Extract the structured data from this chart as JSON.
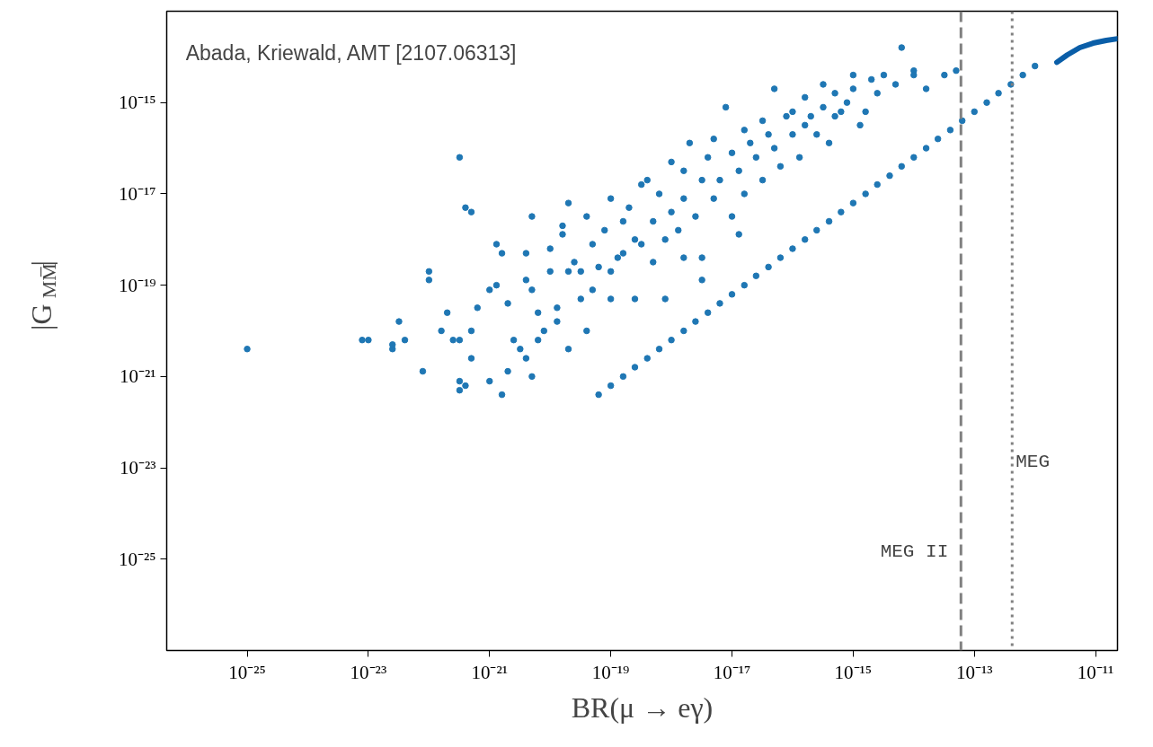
{
  "chart_data": {
    "type": "scatter",
    "xlabel": "BR(μ → eγ)",
    "ylabel": "|G$_{MM̅}$|",
    "log": "xy",
    "grid": false,
    "marker": "circle",
    "xlim": [
      4.7e-27,
      2.3e-11
    ],
    "ylim": [
      1e-27,
      1e-13
    ],
    "xticks": [
      {
        "value": 1e-25,
        "label": "10⁻²⁵"
      },
      {
        "value": 1e-23,
        "label": "10⁻²³"
      },
      {
        "value": 1e-21,
        "label": "10⁻²¹"
      },
      {
        "value": 1e-19,
        "label": "10⁻¹⁹"
      },
      {
        "value": 1e-17,
        "label": "10⁻¹⁷"
      },
      {
        "value": 1e-15,
        "label": "10⁻¹⁵"
      },
      {
        "value": 1e-13,
        "label": "10⁻¹³"
      },
      {
        "value": 1e-11,
        "label": "10⁻¹¹"
      }
    ],
    "yticks": [
      {
        "value": 1e-25,
        "label": "10⁻²⁵"
      },
      {
        "value": 1e-23,
        "label": "10⁻²³"
      },
      {
        "value": 1e-21,
        "label": "10⁻²¹"
      },
      {
        "value": 1e-19,
        "label": "10⁻¹⁹"
      },
      {
        "value": 1e-17,
        "label": "10⁻¹⁷"
      },
      {
        "value": 1e-15,
        "label": "10⁻¹⁵"
      }
    ],
    "annotations": [
      "Abada, Kriewald, AMT [2107.06313]"
    ],
    "ref_lines": [
      {
        "axis": "x",
        "value": 6e-14,
        "label": "MEG II",
        "color": "#808080",
        "line_style": "dashed"
      },
      {
        "axis": "x",
        "value": 4.2e-13,
        "label": "MEG",
        "color": "#808080",
        "line_style": "dotted"
      }
    ],
    "series": [
      {
        "color": "#1f77b4",
        "x": [
          1e-25,
          7.9e-24,
          1e-23,
          2.5e-23,
          2.5e-23,
          3.2e-23,
          4e-23,
          7.9e-23,
          1e-22,
          1e-22,
          1.6e-22,
          2e-22,
          2.5e-22,
          3.2e-22,
          3.2e-22,
          3.2e-22,
          4e-22,
          3.2e-22,
          5e-22,
          5e-22,
          6.3e-22,
          1e-21,
          1e-21,
          1.3e-21,
          1.3e-21,
          1.6e-21,
          1.6e-21,
          2e-21,
          2e-21,
          2.5e-21,
          3.2e-21,
          4e-21,
          4e-21,
          5e-21,
          5e-21,
          6.3e-21,
          6.3e-21,
          7.9e-21,
          1e-20,
          1e-20,
          1.3e-20,
          1.3e-20,
          1.6e-20,
          1.6e-20,
          2e-20,
          2e-20,
          2.5e-20,
          3.2e-20,
          3.2e-20,
          4e-20,
          5e-20,
          5e-20,
          6.3e-20,
          7.9e-20,
          1e-19,
          1e-19,
          1.3e-19,
          1.6e-19,
          1.6e-19,
          2e-19,
          2.5e-19,
          3.2e-19,
          3.2e-19,
          4e-19,
          5e-19,
          5e-19,
          6.3e-19,
          7.9e-19,
          1e-18,
          1e-18,
          1.3e-18,
          1.6e-18,
          1.6e-18,
          2e-18,
          2.5e-18,
          3.2e-18,
          3.2e-18,
          4e-18,
          5e-18,
          5e-18,
          6.3e-18,
          7.9e-18,
          1e-17,
          1e-17,
          1.3e-17,
          1.6e-17,
          1.6e-17,
          2e-17,
          2.5e-17,
          3.2e-17,
          3.2e-17,
          4e-17,
          5e-17,
          5e-17,
          6.3e-17,
          7.9e-17,
          1e-16,
          1e-16,
          1.3e-16,
          1.6e-16,
          1.6e-16,
          2e-16,
          2.5e-16,
          3.2e-16,
          3.2e-16,
          4e-16,
          5e-16,
          5e-16,
          6.3e-16,
          7.9e-16,
          1e-15,
          1e-15,
          1.3e-15,
          1.6e-15,
          2e-15,
          2.5e-15,
          3.2e-15,
          5e-15,
          6.3e-15,
          1e-14,
          1e-14,
          1.6e-14,
          3.2e-14,
          5e-14,
          1e-19,
          2.5e-19,
          7.9e-19,
          3.2e-18,
          1.3e-17,
          1.6e-18,
          4e-20,
          2e-20,
          5e-21,
          4e-22,
          4e-21,
          5e-22
        ],
        "values": [
          4e-21,
          6.3e-21,
          6.3e-21,
          4e-21,
          5e-21,
          1.6e-20,
          6.3e-21,
          1.3e-21,
          2e-19,
          1.3e-19,
          1e-20,
          2.5e-20,
          6.3e-21,
          6.3e-21,
          5e-22,
          7.9e-22,
          5e-18,
          6.3e-17,
          1e-20,
          2.5e-21,
          3.2e-20,
          7.9e-20,
          7.9e-22,
          1e-19,
          7.9e-19,
          5e-19,
          4e-22,
          1.3e-21,
          4e-20,
          6.3e-21,
          4e-21,
          1.3e-19,
          2.5e-21,
          7.9e-20,
          3.2e-18,
          2.5e-20,
          6.3e-21,
          1e-20,
          2e-19,
          6.3e-19,
          3.2e-20,
          1.6e-20,
          1.3e-18,
          2e-18,
          2e-19,
          6.3e-18,
          3.2e-19,
          5e-20,
          2e-19,
          3.2e-18,
          7.9e-20,
          7.9e-19,
          2.5e-19,
          1.6e-18,
          2e-19,
          7.9e-18,
          4e-19,
          2.5e-18,
          5e-19,
          5e-18,
          1e-18,
          1.6e-17,
          7.9e-19,
          2e-17,
          2.5e-18,
          3.2e-19,
          1e-17,
          1e-18,
          5e-17,
          4e-18,
          1.6e-18,
          3.2e-17,
          7.9e-18,
          1.3e-16,
          3.2e-18,
          2e-17,
          4e-19,
          6.3e-17,
          7.9e-18,
          1.6e-16,
          2e-17,
          7.9e-16,
          3.2e-18,
          7.9e-17,
          3.2e-17,
          2.5e-16,
          1e-17,
          1.3e-16,
          6.3e-17,
          4e-16,
          2e-17,
          2e-16,
          1e-16,
          2e-15,
          4e-17,
          5e-16,
          2e-16,
          6.3e-16,
          6.3e-17,
          3.2e-16,
          1.3e-15,
          5e-16,
          2e-16,
          2.5e-15,
          7.9e-16,
          1.3e-16,
          1.6e-15,
          5e-16,
          6.3e-16,
          1e-15,
          4e-15,
          2e-15,
          3.2e-16,
          6.3e-16,
          3.2e-15,
          1.6e-15,
          4e-15,
          2.5e-15,
          1.6e-14,
          5e-15,
          4e-15,
          2e-15,
          4e-15,
          5e-15,
          5e-20,
          5e-20,
          5e-20,
          1.3e-19,
          1.3e-18,
          4e-19,
          1e-20,
          4e-21,
          1e-21,
          6.3e-22,
          5e-19,
          4e-18
        ]
      },
      {
        "color": "#1f77b4",
        "x": [
          6.3e-20,
          1e-19,
          1.6e-19,
          2.5e-19,
          4e-19,
          6.3e-19,
          1e-18,
          1.6e-18,
          2.5e-18,
          4e-18,
          6.3e-18,
          1e-17,
          1.6e-17,
          2.5e-17,
          4e-17,
          6.3e-17,
          1e-16,
          1.6e-16,
          2.5e-16,
          4e-16,
          6.3e-16,
          1e-15,
          1.6e-15,
          2.5e-15,
          4e-15,
          6.3e-15,
          1e-14,
          1.6e-14,
          2.5e-14,
          4e-14,
          6.3e-14,
          1e-13,
          1.6e-13,
          2.5e-13,
          4e-13,
          6.3e-13,
          1e-12
        ],
        "values": [
          4e-22,
          6.3e-22,
          1e-21,
          1.6e-21,
          2.5e-21,
          4e-21,
          6.3e-21,
          1e-20,
          1.6e-20,
          2.5e-20,
          4e-20,
          6.3e-20,
          1e-19,
          1.6e-19,
          2.5e-19,
          4e-19,
          6.3e-19,
          1e-18,
          1.6e-18,
          2.5e-18,
          4e-18,
          6.3e-18,
          1e-17,
          1.6e-17,
          2.5e-17,
          4e-17,
          6.3e-17,
          1e-16,
          1.6e-16,
          2.5e-16,
          4e-16,
          6.3e-16,
          1e-15,
          1.6e-15,
          2.5e-15,
          4e-15,
          6.3e-15
        ]
      },
      {
        "type": "line",
        "marker": "none",
        "color": "#0a5ea8",
        "x": [
          2.3e-12,
          3.4e-12,
          5.5e-12,
          9.1e-12,
          1.5e-11,
          2.3e-11
        ],
        "values": [
          7.6e-15,
          1.1e-14,
          1.6e-14,
          2e-14,
          2.3e-14,
          2.5e-14
        ]
      }
    ]
  }
}
